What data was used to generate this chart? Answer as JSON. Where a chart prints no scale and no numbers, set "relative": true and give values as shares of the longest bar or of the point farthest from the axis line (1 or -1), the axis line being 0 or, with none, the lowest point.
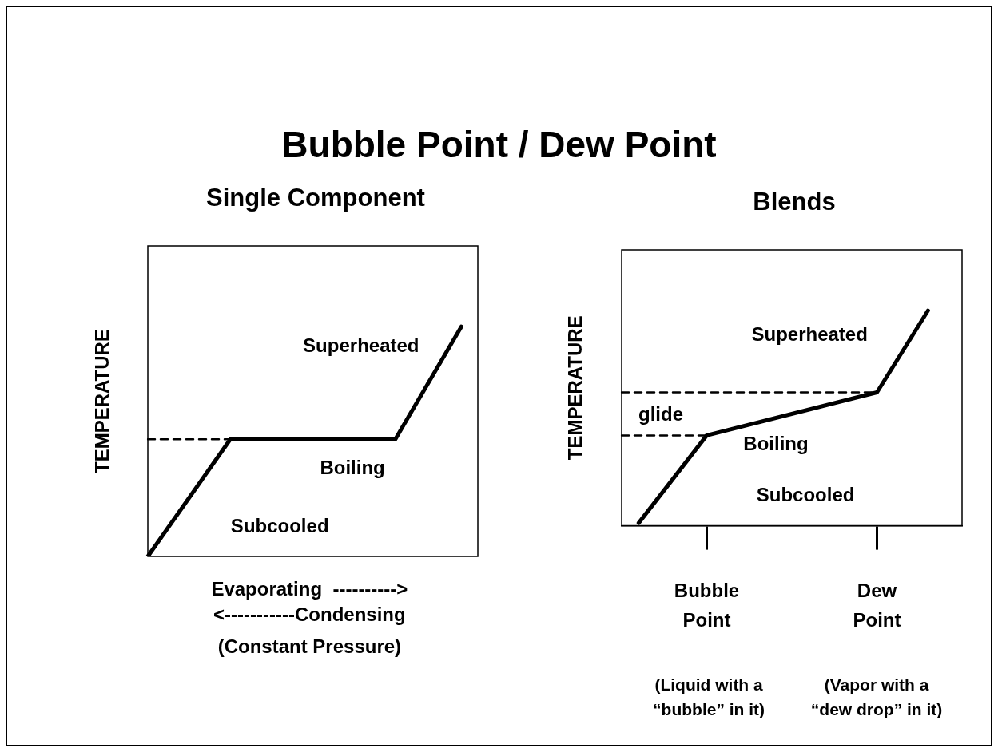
{
  "chart_data": [
    {
      "type": "line",
      "title": "Bubble Point / Dew Point",
      "subtitle": "Single Component",
      "xlabel": "Evaporating  ---------->\n<-----------Condensing",
      "ylabel": "TEMPERATURE",
      "relative": true,
      "tick_labels": false,
      "grid": false,
      "legend": false,
      "marker": "none",
      "categories": [
        null,
        null,
        null,
        null,
        null,
        null,
        null,
        null,
        null,
        null,
        null,
        null,
        null,
        null,
        null,
        null,
        null,
        null,
        null,
        null,
        null
      ],
      "series": [
        {
          "color": "#000000",
          "values": [
            0,
            null,
            null,
            null,
            null,
            0.51,
            null,
            null,
            null,
            null,
            null,
            null,
            null,
            null,
            null,
            0.51,
            null,
            null,
            null,
            1,
            null
          ]
        },
        {
          "color": "#000000",
          "line_style": "dashed",
          "values": [
            0.51,
            null,
            null,
            null,
            null,
            0.51,
            null,
            null,
            null,
            null,
            null,
            null,
            null,
            null,
            null,
            null,
            null,
            null,
            null,
            null,
            null
          ]
        }
      ],
      "annotations": [
        "Superheated",
        "Boiling",
        "Subcooled",
        "(Constant Pressure)"
      ]
    },
    {
      "type": "line",
      "title": "Blends",
      "ylabel": "TEMPERATURE",
      "relative": true,
      "tick_labels": "x",
      "grid": false,
      "legend": false,
      "marker": "none",
      "categories": [
        null,
        null,
        null,
        null,
        null,
        "Bubble Point",
        null,
        null,
        null,
        null,
        null,
        null,
        null,
        null,
        null,
        "Dew Point",
        null,
        null,
        null,
        null,
        null
      ],
      "series": [
        {
          "color": "#000000",
          "values": [
            null,
            0.013,
            null,
            null,
            null,
            0.42,
            null,
            null,
            null,
            null,
            null,
            null,
            null,
            null,
            null,
            0.62,
            null,
            null,
            1,
            null,
            null
          ]
        },
        {
          "color": "#000000",
          "line_style": "dashed",
          "values": [
            0.42,
            null,
            null,
            null,
            null,
            0.42,
            null,
            null,
            null,
            null,
            null,
            null,
            null,
            null,
            null,
            null,
            null,
            null,
            null,
            null,
            null
          ]
        },
        {
          "color": "#000000",
          "line_style": "dashed",
          "values": [
            0.62,
            null,
            null,
            null,
            null,
            null,
            null,
            null,
            null,
            null,
            null,
            null,
            null,
            null,
            null,
            0.62,
            null,
            null,
            null,
            null,
            null
          ]
        }
      ],
      "annotations": [
        "Superheated",
        "glide",
        "Boiling",
        "Subcooled",
        "(Liquid with a “bubble” in it)",
        "(Vapor with a “dew drop” in it)"
      ]
    }
  ]
}
